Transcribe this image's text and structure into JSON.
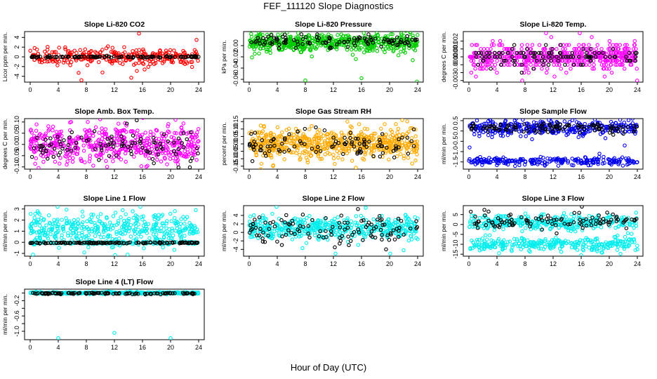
{
  "figure": {
    "title": "FEF_111120  Slope Diagnostics",
    "xlabel": "Hour of Day (UTC)"
  },
  "chart_data": [
    {
      "type": "scatter",
      "title": "Slope Li-820 CO2",
      "ylabel": "Licor ppm per min.",
      "color": "#ff0000",
      "xlim": [
        0,
        24
      ],
      "ylim": [
        -5.2,
        5.2
      ],
      "xticks": [
        0,
        4,
        8,
        12,
        16,
        20,
        24
      ],
      "yticks": [
        -4,
        -2,
        0,
        2,
        4
      ],
      "ytick_labels": [
        "-4",
        "-2",
        "0",
        "2",
        "4"
      ],
      "series": [
        {
          "role": "colored",
          "center": 0,
          "spread": 0.8,
          "n": 300,
          "outliers": [
            [
              15.5,
              4.8
            ],
            [
              14.4,
              -4.3
            ],
            [
              7.3,
              -4.8
            ],
            [
              15.2,
              -2.9
            ],
            [
              6.9,
              -3.3
            ],
            [
              23.7,
              3.5
            ],
            [
              16.3,
              -2.6
            ],
            [
              13.4,
              2.0
            ],
            [
              10.3,
              -3.2
            ]
          ]
        },
        {
          "role": "black",
          "center": 0,
          "spread": 0.08,
          "n": 120,
          "outliers": []
        }
      ]
    },
    {
      "type": "scatter",
      "title": "Slope Li-820 Pressure",
      "ylabel": "kPa per min.",
      "color": "#00cc00",
      "xlim": [
        0,
        24
      ],
      "ylim": [
        -0.065,
        0.025
      ],
      "xticks": [
        0,
        4,
        8,
        12,
        16,
        20,
        24
      ],
      "yticks": [
        -0.06,
        -0.04,
        -0.02,
        0.0
      ],
      "ytick_labels": [
        "-0.06",
        "-0.04",
        "-0.02",
        "0.00"
      ],
      "series": [
        {
          "role": "colored",
          "center": 0.005,
          "spread": 0.008,
          "n": 550,
          "outliers": [
            [
              8.0,
              -0.062
            ],
            [
              16.0,
              -0.058
            ],
            [
              23.9,
              -0.064
            ],
            [
              0.4,
              -0.021
            ],
            [
              15.2,
              -0.024
            ],
            [
              23.3,
              -0.026
            ],
            [
              1.4,
              -0.014
            ]
          ]
        },
        {
          "role": "black",
          "center": 0.008,
          "spread": 0.006,
          "n": 110,
          "outliers": []
        }
      ]
    },
    {
      "type": "scatter",
      "title": "Slope Li-820 Temp.",
      "ylabel": "degrees C per min.",
      "color": "#ff00ff",
      "xlim": [
        0,
        24
      ],
      "ylim": [
        -0.0032,
        0.0032
      ],
      "xticks": [
        0,
        4,
        8,
        12,
        16,
        20,
        24
      ],
      "yticks": [
        -0.003,
        -0.002,
        -0.001,
        0.0,
        0.001,
        0.002
      ],
      "ytick_labels": [
        "-0.003",
        "",
        "-0.001",
        "0.000",
        "0.001",
        "0.002"
      ],
      "quantize": 0.0005,
      "series": [
        {
          "role": "colored",
          "center": 0,
          "spread": 0.0008,
          "n": 550,
          "outliers": [
            [
              11.0,
              0.003
            ],
            [
              15.8,
              0.003
            ],
            [
              7.6,
              -0.003
            ],
            [
              1.0,
              -0.0025
            ],
            [
              12.2,
              -0.0025
            ],
            [
              17.5,
              0.0025
            ],
            [
              3.4,
              0.002
            ]
          ]
        },
        {
          "role": "black",
          "center": 0,
          "spread": 0.0006,
          "n": 110,
          "outliers": []
        }
      ]
    },
    {
      "type": "scatter",
      "title": "Slope Amb. Box Temp.",
      "ylabel": "degrees C per min.",
      "color": "#ff00ff",
      "xlim": [
        0,
        24
      ],
      "ylim": [
        -0.11,
        0.115
      ],
      "xticks": [
        0,
        4,
        8,
        12,
        16,
        20,
        24
      ],
      "yticks": [
        -0.1,
        -0.05,
        0.0,
        0.05,
        0.1
      ],
      "ytick_labels": [
        "-0.10",
        "-0.05",
        "0.00",
        "0.05",
        "0.10"
      ],
      "series": [
        {
          "role": "colored",
          "center": 0,
          "spread": 0.04,
          "n": 540,
          "outliers": [
            [
              20.7,
              0.11
            ],
            [
              1.2,
              -0.105
            ],
            [
              5.2,
              -0.09
            ],
            [
              13.5,
              0.095
            ],
            [
              8.2,
              0.1
            ]
          ]
        },
        {
          "role": "black",
          "center": 0,
          "spread": 0.035,
          "n": 100,
          "outliers": []
        }
      ]
    },
    {
      "type": "scatter",
      "title": "Slope Gas Stream RH",
      "ylabel": "percent per min.",
      "color": "#ffaa00",
      "xlim": [
        0,
        24
      ],
      "ylim": [
        -0.17,
        0.17
      ],
      "xticks": [
        0,
        4,
        8,
        12,
        16,
        20,
        24
      ],
      "yticks": [
        -0.15,
        -0.1,
        -0.05,
        0.0,
        0.05,
        0.1,
        0.15
      ],
      "ytick_labels": [
        "-0.15",
        "-0.10",
        "-0.05",
        "0.00",
        "0.05",
        "0.10",
        "0.15"
      ],
      "series": [
        {
          "role": "colored",
          "center": 0,
          "spread": 0.05,
          "n": 620,
          "outliers": [
            [
              15.2,
              -0.16
            ],
            [
              3.4,
              -0.15
            ],
            [
              21.8,
              0.16
            ],
            [
              14.0,
              0.15
            ],
            [
              8.9,
              0.12
            ]
          ]
        },
        {
          "role": "black",
          "center": 0,
          "spread": 0.045,
          "n": 100,
          "outliers": []
        }
      ]
    },
    {
      "type": "scatter",
      "title": "Slope Sample Flow",
      "ylabel": "ml/min per min.",
      "color": "#0000ee",
      "xlim": [
        0,
        24
      ],
      "ylim": [
        -1.85,
        0.6
      ],
      "xticks": [
        0,
        4,
        8,
        12,
        16,
        20,
        24
      ],
      "yticks": [
        -1.5,
        -1.0,
        -0.5,
        0.0,
        0.5
      ],
      "ytick_labels": [
        "-1.5",
        "-1.0",
        "-0.5",
        "0.0",
        "0.5"
      ],
      "series": [
        {
          "role": "colored",
          "center": 0.15,
          "spread": 0.18,
          "n": 330,
          "outliers": []
        },
        {
          "role": "colored",
          "center": -1.45,
          "spread": 0.09,
          "n": 240,
          "outliers": [
            [
              0.1,
              -0.8
            ],
            [
              3.3,
              -0.3
            ],
            [
              22.2,
              -0.7
            ],
            [
              9.0,
              -0.4
            ],
            [
              18.6,
              -1.1
            ]
          ]
        },
        {
          "role": "black",
          "center": 0.15,
          "spread": 0.12,
          "n": 110,
          "outliers": []
        }
      ]
    },
    {
      "type": "scatter",
      "title": "Slope Line 1 Flow",
      "ylabel": "ml/min per min.",
      "color": "#00eeee",
      "xlim": [
        0,
        24
      ],
      "ylim": [
        -1.25,
        3.3
      ],
      "xticks": [
        0,
        4,
        8,
        12,
        16,
        20,
        24
      ],
      "yticks": [
        -1,
        0,
        1,
        2,
        3
      ],
      "ytick_labels": [
        "-1",
        "0",
        "1",
        "2",
        "3"
      ],
      "series": [
        {
          "role": "colored",
          "center": 1.2,
          "spread": 0.7,
          "n": 420,
          "outliers": [
            [
              0.4,
              -1.1
            ],
            [
              12.1,
              -1.15
            ],
            [
              3.9,
              3.2
            ],
            [
              23.6,
              2.9
            ],
            [
              15.7,
              3.2
            ]
          ]
        },
        {
          "role": "colored",
          "center": -0.05,
          "spread": 0.06,
          "n": 160,
          "outliers": []
        },
        {
          "role": "black",
          "center": -0.05,
          "spread": 0.03,
          "n": 130,
          "outliers": []
        }
      ]
    },
    {
      "type": "scatter",
      "title": "Slope Line 2 Flow",
      "ylabel": "ml/min per min.",
      "color": "#00eeee",
      "xlim": [
        0,
        24
      ],
      "ylim": [
        -5.6,
        6.3
      ],
      "xticks": [
        0,
        4,
        8,
        12,
        16,
        20,
        24
      ],
      "yticks": [
        -4,
        -2,
        0,
        2,
        4
      ],
      "ytick_labels": [
        "-4",
        "-2",
        "0",
        "2",
        "4"
      ],
      "series": [
        {
          "role": "colored",
          "center": 1.0,
          "spread": 1.3,
          "n": 480,
          "outliers": [
            [
              3.9,
              6.0
            ],
            [
              16.6,
              5.8
            ],
            [
              12.3,
              -5.0
            ],
            [
              20.1,
              -5.0
            ],
            [
              7.6,
              -3.7
            ],
            [
              22.0,
              -4.2
            ]
          ]
        },
        {
          "role": "black",
          "center": 0.8,
          "spread": 1.6,
          "n": 110,
          "outliers": [
            [
              15.5,
              5.5
            ],
            [
              12.2,
              -3.5
            ],
            [
              19.5,
              -4.0
            ],
            [
              14.2,
              -3.0
            ]
          ]
        }
      ]
    },
    {
      "type": "scatter",
      "title": "Slope Line 3 Flow",
      "ylabel": "ml/min per min.",
      "color": "#00eeee",
      "xlim": [
        0,
        24
      ],
      "ylim": [
        -16,
        9.5
      ],
      "xticks": [
        0,
        4,
        8,
        12,
        16,
        20,
        24
      ],
      "yticks": [
        -15,
        -10,
        -5,
        0,
        5
      ],
      "ytick_labels": [
        "-15",
        "-10",
        "-5",
        "0",
        "5"
      ],
      "series": [
        {
          "role": "colored",
          "center": 1.0,
          "spread": 2.0,
          "n": 340,
          "outliers": []
        },
        {
          "role": "colored",
          "center": -10,
          "spread": 1.6,
          "n": 300,
          "outliers": [
            [
              16.0,
              -15.5
            ],
            [
              4.3,
              -14.5
            ],
            [
              21.6,
              -14.8
            ]
          ]
        },
        {
          "role": "black",
          "center": 1.5,
          "spread": 1.8,
          "n": 100,
          "outliers": [
            [
              16.1,
              9.0
            ],
            [
              19.7,
              6.0
            ],
            [
              12.5,
              -4.5
            ]
          ]
        }
      ]
    },
    {
      "type": "scatter",
      "title": "Slope Line 4 (LT) Flow",
      "ylabel": "ml/min per min.",
      "color": "#00eeee",
      "xlim": [
        0,
        24
      ],
      "ylim": [
        -1.22,
        0.1
      ],
      "xticks": [
        0,
        4,
        8,
        12,
        16,
        20,
        24
      ],
      "yticks": [
        -1.0,
        -0.8,
        -0.6,
        -0.4,
        -0.2,
        0.0
      ],
      "ytick_labels": [
        "-1.0",
        "",
        "-0.6",
        "",
        "-0.2",
        ""
      ],
      "series": [
        {
          "role": "colored",
          "center": 0.0,
          "spread": 0.012,
          "n": 420,
          "outliers": [
            [
              4.0,
              -1.18
            ],
            [
              12.0,
              -1.04
            ],
            [
              20.0,
              -1.18
            ]
          ]
        },
        {
          "role": "black",
          "center": -0.01,
          "spread": 0.01,
          "n": 110,
          "outliers": []
        }
      ]
    }
  ]
}
